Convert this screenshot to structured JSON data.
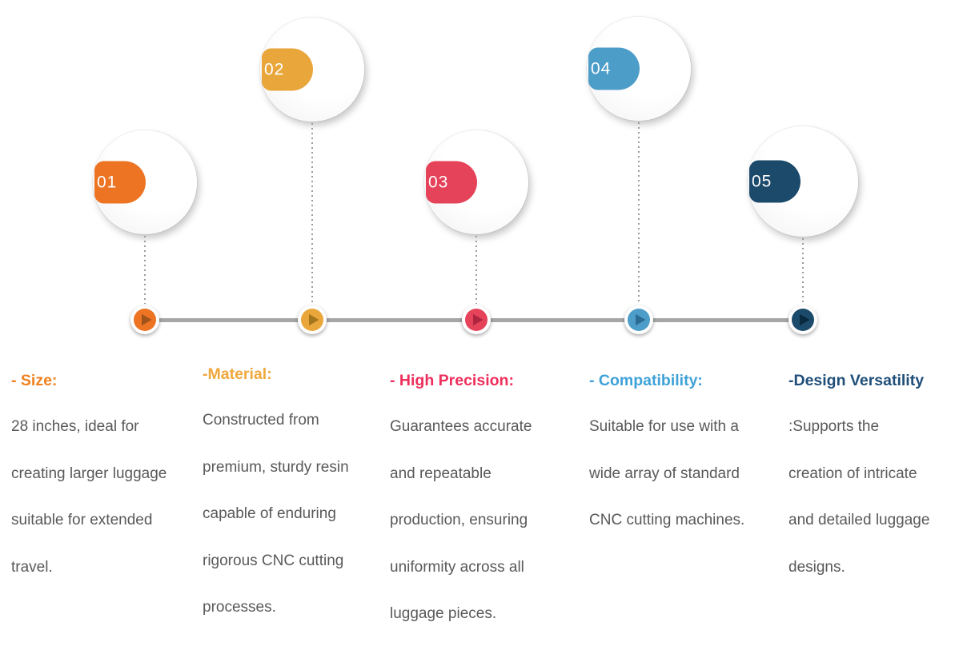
{
  "items": [
    {
      "number": "01",
      "color": "#ED7423",
      "triangle_color": "#A0541C",
      "heading": "- Size:",
      "heading_color": "#F0811F",
      "lines": [
        "28 inches, ideal for",
        "creating larger luggage",
        "suitable for extended",
        "travel."
      ]
    },
    {
      "number": "02",
      "color": "#E9A63B",
      "triangle_color": "#A5761C",
      "heading": "-Material:",
      "heading_color": "#EFA83D",
      "lines": [
        "Constructed from",
        "premium, sturdy resin",
        "capable of enduring",
        "rigorous CNC cutting",
        "processes."
      ]
    },
    {
      "number": "03",
      "color": "#E5435A",
      "triangle_color": "#AE2540",
      "heading": "- High Precision:",
      "heading_color": "#EE2E5B",
      "lines": [
        "Guarantees accurate",
        "and repeatable",
        "production, ensuring",
        "uniformity across all",
        "luggage pieces."
      ]
    },
    {
      "number": "04",
      "color": "#4D9DC9",
      "triangle_color": "#2A6C94",
      "heading": "- Compatibility:",
      "heading_color": "#3EA2D8",
      "lines": [
        "Suitable for use with a",
        "wide array of standard",
        "CNC cutting machines."
      ]
    },
    {
      "number": "05",
      "color": "#1B4A6B",
      "triangle_color": "#0A2A40",
      "heading": "-Design Versatility",
      "heading_color": "#1F4E79",
      "lines": [
        ":Supports the",
        "creation of intricate",
        "and detailed luggage",
        "designs."
      ]
    }
  ],
  "timeline": {
    "line_color": "#A6A6A6",
    "dot_color": "#9B9B9B"
  },
  "body_text_color": "#595959"
}
